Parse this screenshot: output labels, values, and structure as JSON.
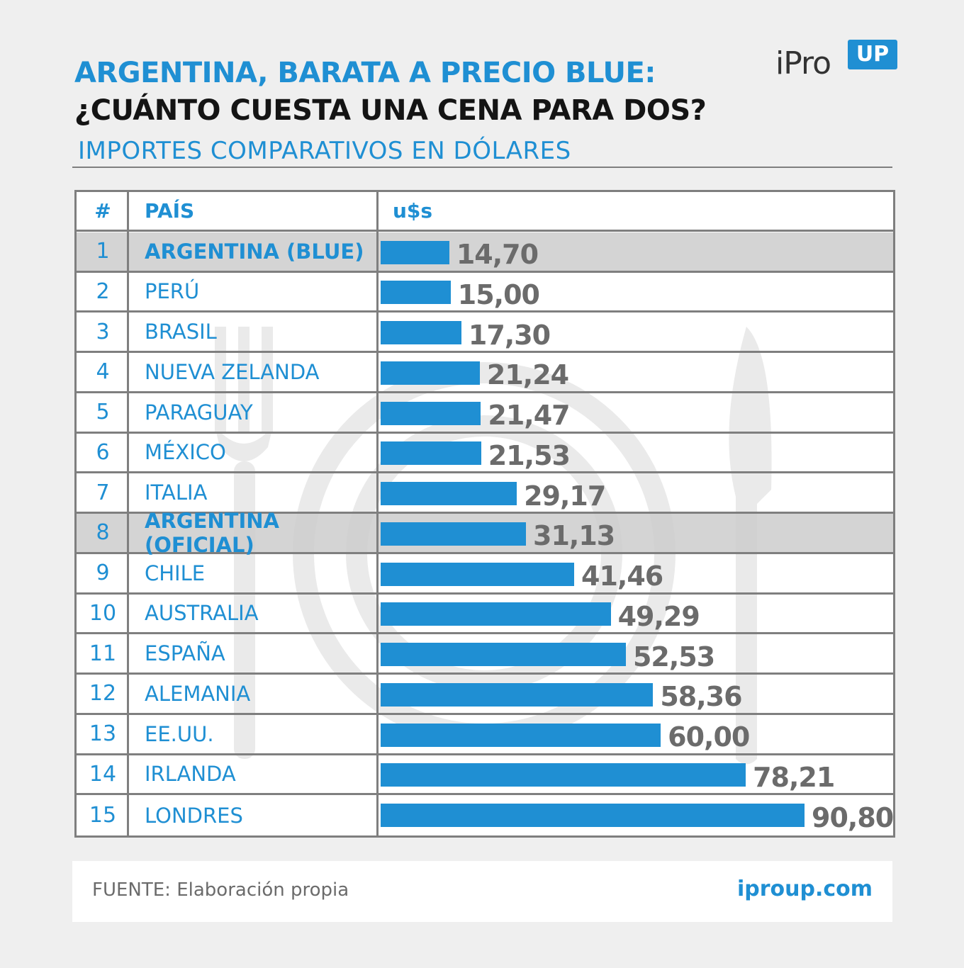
{
  "header": {
    "title_line1": "ARGENTINA, BARATA A PRECIO BLUE:",
    "title_line2": "¿CUÁNTO CUESTA UNA CENA PARA DOS?",
    "subtitle": "IMPORTES COMPARATIVOS EN DÓLARES"
  },
  "logo": {
    "text": "iPro",
    "badge": "UP"
  },
  "table": {
    "col_num": "#",
    "col_country": "PAÍS",
    "col_value": "u$s"
  },
  "chart_data": {
    "type": "bar",
    "orientation": "horizontal",
    "title": "ARGENTINA, BARATA A PRECIO BLUE: ¿CUÁNTO CUESTA UNA CENA PARA DOS?",
    "subtitle": "IMPORTES COMPARATIVOS EN DÓLARES",
    "ylabel": "u$s",
    "ranks": [
      "1",
      "2",
      "3",
      "4",
      "5",
      "6",
      "7",
      "8",
      "9",
      "10",
      "11",
      "12",
      "13",
      "14",
      "15"
    ],
    "categories": [
      "ARGENTINA (BLUE)",
      "PERÚ",
      "BRASIL",
      "NUEVA ZELANDA",
      "PARAGUAY",
      "MÉXICO",
      "ITALIA",
      "ARGENTINA (OFICIAL)",
      "CHILE",
      "AUSTRALIA",
      "ESPAÑA",
      "ALEMANIA",
      "EE.UU.",
      "IRLANDA",
      "LONDRES"
    ],
    "values": [
      14.7,
      15.0,
      17.3,
      21.24,
      21.47,
      21.53,
      29.17,
      31.13,
      41.46,
      49.29,
      52.53,
      58.36,
      60.0,
      78.21,
      90.8
    ],
    "labels": [
      "14,70",
      "15,00",
      "17,30",
      "21,24",
      "21,47",
      "21,53",
      "29,17",
      "31,13",
      "41,46",
      "49,29",
      "52,53",
      "58,36",
      "60,00",
      "78,21",
      "90,80"
    ],
    "highlighted": [
      true,
      false,
      false,
      false,
      false,
      false,
      false,
      true,
      false,
      false,
      false,
      false,
      false,
      false,
      false
    ],
    "bar_color": "#1f8fd3",
    "highlight_color": "#cdcdcd"
  },
  "footer": {
    "source": "FUENTE: Elaboración propia",
    "site": "iproup.com"
  }
}
